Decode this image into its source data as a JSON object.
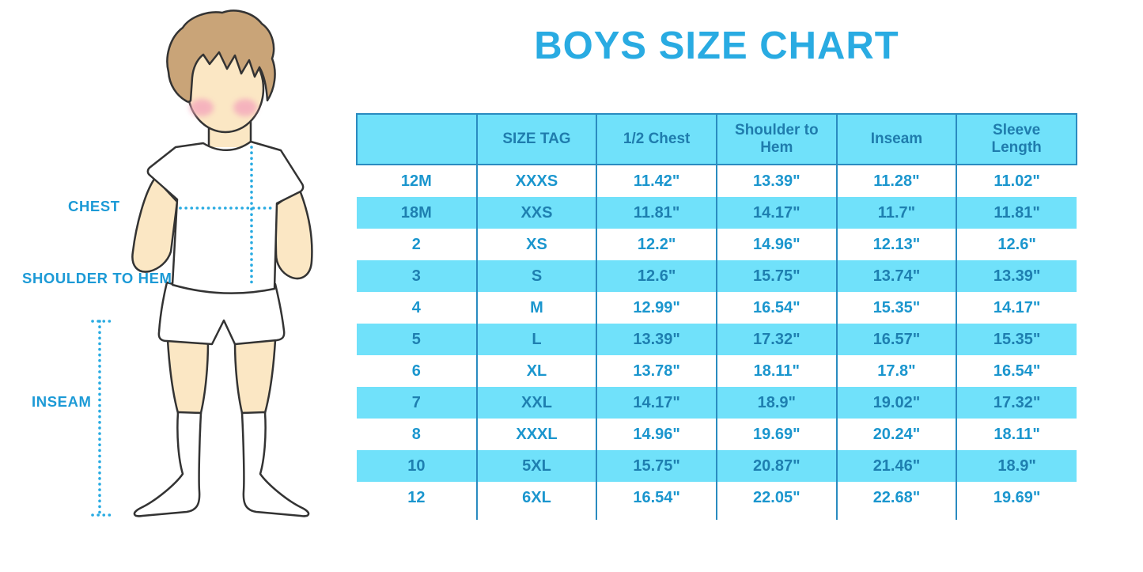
{
  "chart_data": {
    "type": "table",
    "title": "BOYS SIZE CHART",
    "columns": [
      "",
      "SIZE TAG",
      "1/2 Chest",
      "Shoulder to Hem",
      "Inseam",
      "Sleeve Length"
    ],
    "rows": [
      [
        "12M",
        "XXXS",
        "11.42\"",
        "13.39\"",
        "11.28\"",
        "11.02\""
      ],
      [
        "18M",
        "XXS",
        "11.81\"",
        "14.17\"",
        "11.7\"",
        "11.81\""
      ],
      [
        "2",
        "XS",
        "12.2\"",
        "14.96\"",
        "12.13\"",
        "12.6\""
      ],
      [
        "3",
        "S",
        "12.6\"",
        "15.75\"",
        "13.74\"",
        "13.39\""
      ],
      [
        "4",
        "M",
        "12.99\"",
        "16.54\"",
        "15.35\"",
        "14.17\""
      ],
      [
        "5",
        "L",
        "13.39\"",
        "17.32\"",
        "16.57\"",
        "15.35\""
      ],
      [
        "6",
        "XL",
        "13.78\"",
        "18.11\"",
        "17.8\"",
        "16.54\""
      ],
      [
        "7",
        "XXL",
        "14.17\"",
        "18.9\"",
        "19.02\"",
        "17.32\""
      ],
      [
        "8",
        "XXXL",
        "14.96\"",
        "19.69\"",
        "20.24\"",
        "18.11\""
      ],
      [
        "10",
        "5XL",
        "15.75\"",
        "20.87\"",
        "21.46\"",
        "18.9\""
      ],
      [
        "12",
        "6XL",
        "16.54\"",
        "22.05\"",
        "22.68\"",
        "19.69\""
      ]
    ],
    "layout": {
      "alternating_row_band": true,
      "vertical_dividers": true,
      "horizontal_lines": "header-only"
    }
  },
  "illustration": {
    "labels": {
      "chest": "CHEST",
      "shoulder_to_hem": "SHOULDER TO HEM",
      "inseam": "INSEAM"
    }
  },
  "colors": {
    "title": "#29ABE2",
    "table_band": "#70E1FA",
    "header_text": "#1F7CAD",
    "value_text": "#1B96CE",
    "value_text_on_band": "#1E7FB0",
    "divider": "#2A8BC0",
    "label_text": "#1C9AD6",
    "dotted_measure_line": "#29ABE2",
    "skin": "#FBE7C4",
    "hair": "#C9A478",
    "cheek": "#F4A7BC",
    "outline": "#333333"
  }
}
